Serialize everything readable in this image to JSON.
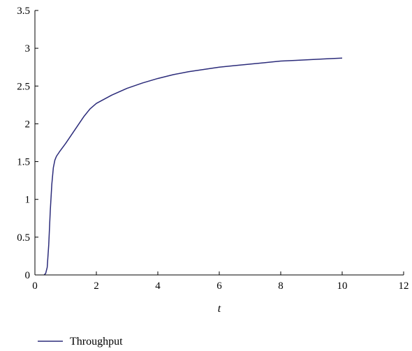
{
  "chart_data": {
    "type": "line",
    "title": "",
    "xlabel": "t",
    "ylabel": "",
    "xlim": [
      0,
      12
    ],
    "ylim": [
      0,
      3.5
    ],
    "xticks": [
      0,
      2,
      4,
      6,
      8,
      10,
      12
    ],
    "yticks": [
      0,
      0.5,
      1,
      1.5,
      2,
      2.5,
      3,
      3.5
    ],
    "xtick_labels": [
      "0",
      "2",
      "4",
      "6",
      "8",
      "10",
      "12"
    ],
    "ytick_labels": [
      "0",
      "0.5",
      "1",
      "1.5",
      "2",
      "2.5",
      "3",
      "3.5"
    ],
    "grid": false,
    "legend_position": "bottom-left",
    "series": [
      {
        "name": "Throughput",
        "color": "#2b2b7a",
        "x": [
          0.3,
          0.35,
          0.4,
          0.45,
          0.5,
          0.55,
          0.6,
          0.65,
          0.7,
          0.8,
          1.0,
          1.2,
          1.4,
          1.6,
          1.8,
          2.0,
          2.5,
          3.0,
          3.5,
          4.0,
          4.5,
          5.0,
          5.5,
          6.0,
          6.5,
          7.0,
          7.5,
          8.0,
          8.5,
          9.0,
          9.5,
          10.0
        ],
        "y": [
          0.0,
          0.02,
          0.1,
          0.4,
          0.85,
          1.2,
          1.42,
          1.52,
          1.57,
          1.63,
          1.74,
          1.86,
          1.98,
          2.1,
          2.2,
          2.27,
          2.38,
          2.47,
          2.54,
          2.6,
          2.65,
          2.69,
          2.72,
          2.75,
          2.77,
          2.79,
          2.81,
          2.83,
          2.84,
          2.85,
          2.86,
          2.87
        ]
      }
    ]
  }
}
